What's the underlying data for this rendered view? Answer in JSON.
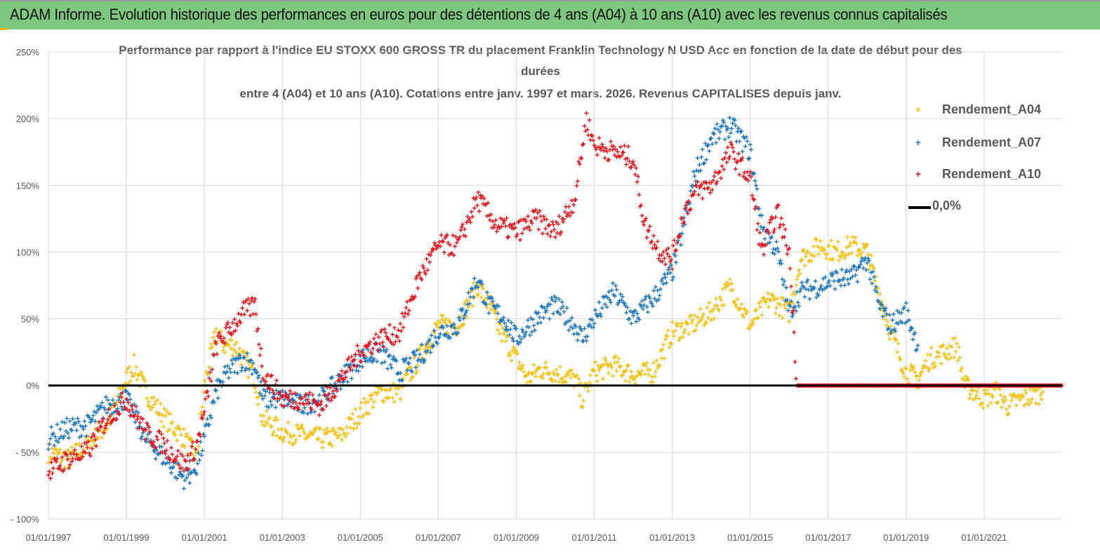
{
  "header": {
    "title": "ADAM Informe. Evolution historique des performances en euros pour des détentions de 4 ans (A04) à 10 ans (A10) avec les revenus connus capitalisés"
  },
  "chart_data": {
    "type": "scatter",
    "title_lines": [
      "Performance par rapport à l'indice EU STOXX 600 GROSS TR  du placement Franklin Technology N USD Acc en fonction de la date de début pour des",
      "durées",
      "entre 4 (A04) et 10 ans (A10). Cotations entre janv. 1997 et mars. 2026. Revenus CAPITALISES depuis janv."
    ],
    "xlabel": "",
    "ylabel": "",
    "xlim": [
      1997,
      2023
    ],
    "ylim": [
      -100,
      250
    ],
    "y_ticks": [
      250,
      200,
      150,
      100,
      50,
      0,
      -50,
      -100
    ],
    "y_tick_labels": [
      "250%",
      "200%",
      "150%",
      "100%",
      "50%",
      "0%",
      "- 50%",
      "- 100%"
    ],
    "x_ticks": [
      1997,
      1999,
      2001,
      2003,
      2005,
      2007,
      2009,
      2011,
      2013,
      2015,
      2017,
      2019,
      2021
    ],
    "x_tick_labels": [
      "01/01/1997",
      "01/01/1999",
      "01/01/2001",
      "01/01/2003",
      "01/01/2005",
      "01/01/2007",
      "01/01/2009",
      "01/01/2011",
      "01/01/2013",
      "01/01/2015",
      "01/01/2017",
      "01/01/2019",
      "01/01/2021"
    ],
    "grid": true,
    "legend_position": "right",
    "series": [
      {
        "name": "Rendement_A04",
        "color": "#f5c010",
        "marker": "+",
        "points": [
          [
            1997.0,
            -50
          ],
          [
            1997.5,
            -55
          ],
          [
            1998.0,
            -45
          ],
          [
            1998.5,
            -30
          ],
          [
            1999.0,
            5
          ],
          [
            1999.2,
            15
          ],
          [
            1999.5,
            -5
          ],
          [
            2000.0,
            -25
          ],
          [
            2000.5,
            -40
          ],
          [
            2000.8,
            -55
          ],
          [
            2001.0,
            0
          ],
          [
            2001.3,
            40
          ],
          [
            2001.5,
            30
          ],
          [
            2001.8,
            30
          ],
          [
            2002.0,
            20
          ],
          [
            2002.3,
            5
          ],
          [
            2002.5,
            -25
          ],
          [
            2003.0,
            -35
          ],
          [
            2003.5,
            -37
          ],
          [
            2004.0,
            -40
          ],
          [
            2004.5,
            -38
          ],
          [
            2005.0,
            -20
          ],
          [
            2005.5,
            -5
          ],
          [
            2006.0,
            -5
          ],
          [
            2006.5,
            20
          ],
          [
            2007.0,
            45
          ],
          [
            2007.5,
            45
          ],
          [
            2008.0,
            75
          ],
          [
            2008.3,
            60
          ],
          [
            2008.6,
            40
          ],
          [
            2009.0,
            20
          ],
          [
            2009.3,
            5
          ],
          [
            2009.6,
            12
          ],
          [
            2010.0,
            10
          ],
          [
            2010.5,
            5
          ],
          [
            2010.7,
            -10
          ],
          [
            2011.0,
            10
          ],
          [
            2011.5,
            15
          ],
          [
            2012.0,
            8
          ],
          [
            2012.5,
            10
          ],
          [
            2013.0,
            40
          ],
          [
            2013.5,
            45
          ],
          [
            2014.0,
            55
          ],
          [
            2014.5,
            75
          ],
          [
            2015.0,
            45
          ],
          [
            2015.5,
            65
          ],
          [
            2016.0,
            55
          ],
          [
            2016.3,
            95
          ],
          [
            2016.8,
            105
          ],
          [
            2017.2,
            100
          ],
          [
            2017.6,
            105
          ],
          [
            2018.0,
            100
          ],
          [
            2018.3,
            70
          ],
          [
            2018.6,
            40
          ],
          [
            2019.0,
            10
          ],
          [
            2019.3,
            5
          ],
          [
            2019.6,
            20
          ],
          [
            2020.0,
            25
          ],
          [
            2020.3,
            30
          ],
          [
            2020.5,
            0
          ],
          [
            2021.0,
            -10
          ],
          [
            2021.3,
            -5
          ],
          [
            2021.6,
            -15
          ],
          [
            2022.0,
            -10
          ],
          [
            2022.5,
            -5
          ]
        ]
      },
      {
        "name": "Rendement_A07",
        "color": "#1f77c0",
        "marker": "+",
        "points": [
          [
            1997.0,
            -40
          ],
          [
            1997.5,
            -32
          ],
          [
            1998.0,
            -30
          ],
          [
            1998.5,
            -15
          ],
          [
            1999.0,
            -10
          ],
          [
            1999.5,
            -40
          ],
          [
            2000.0,
            -55
          ],
          [
            2000.5,
            -70
          ],
          [
            2000.8,
            -60
          ],
          [
            2001.0,
            -40
          ],
          [
            2001.3,
            -5
          ],
          [
            2001.6,
            10
          ],
          [
            2002.0,
            20
          ],
          [
            2002.3,
            15
          ],
          [
            2002.5,
            -10
          ],
          [
            2003.0,
            -10
          ],
          [
            2003.5,
            -15
          ],
          [
            2004.0,
            -10
          ],
          [
            2004.5,
            5
          ],
          [
            2005.0,
            20
          ],
          [
            2005.5,
            25
          ],
          [
            2006.0,
            10
          ],
          [
            2006.5,
            20
          ],
          [
            2007.0,
            40
          ],
          [
            2007.5,
            45
          ],
          [
            2008.0,
            80
          ],
          [
            2008.3,
            60
          ],
          [
            2008.7,
            50
          ],
          [
            2009.0,
            35
          ],
          [
            2009.5,
            50
          ],
          [
            2010.0,
            60
          ],
          [
            2010.5,
            45
          ],
          [
            2010.7,
            35
          ],
          [
            2011.0,
            50
          ],
          [
            2011.5,
            70
          ],
          [
            2012.0,
            50
          ],
          [
            2012.5,
            65
          ],
          [
            2013.0,
            85
          ],
          [
            2013.3,
            120
          ],
          [
            2013.6,
            160
          ],
          [
            2014.0,
            185
          ],
          [
            2014.5,
            195
          ],
          [
            2015.0,
            175
          ],
          [
            2015.3,
            120
          ],
          [
            2015.7,
            100
          ],
          [
            2016.0,
            55
          ],
          [
            2016.3,
            70
          ],
          [
            2016.8,
            75
          ],
          [
            2017.2,
            80
          ],
          [
            2017.6,
            80
          ],
          [
            2018.0,
            95
          ],
          [
            2018.3,
            60
          ],
          [
            2018.6,
            45
          ],
          [
            2019.0,
            55
          ],
          [
            2019.3,
            30
          ]
        ]
      },
      {
        "name": "Rendement_A10",
        "color": "#e8141c",
        "marker": "+",
        "points": [
          [
            1997.0,
            -65
          ],
          [
            1997.5,
            -55
          ],
          [
            1998.0,
            -50
          ],
          [
            1998.5,
            -25
          ],
          [
            1999.0,
            -10
          ],
          [
            1999.5,
            -35
          ],
          [
            2000.0,
            -45
          ],
          [
            2000.5,
            -60
          ],
          [
            2000.8,
            -45
          ],
          [
            2001.0,
            -20
          ],
          [
            2001.3,
            30
          ],
          [
            2001.6,
            40
          ],
          [
            2002.0,
            55
          ],
          [
            2002.3,
            60
          ],
          [
            2002.5,
            10
          ],
          [
            2003.0,
            -10
          ],
          [
            2003.5,
            -10
          ],
          [
            2004.0,
            -15
          ],
          [
            2004.5,
            5
          ],
          [
            2005.0,
            25
          ],
          [
            2005.5,
            35
          ],
          [
            2006.0,
            40
          ],
          [
            2006.5,
            80
          ],
          [
            2007.0,
            105
          ],
          [
            2007.5,
            105
          ],
          [
            2008.0,
            140
          ],
          [
            2008.5,
            120
          ],
          [
            2009.0,
            115
          ],
          [
            2009.5,
            125
          ],
          [
            2010.0,
            115
          ],
          [
            2010.5,
            140
          ],
          [
            2010.8,
            200
          ],
          [
            2011.0,
            180
          ],
          [
            2011.5,
            175
          ],
          [
            2012.0,
            170
          ],
          [
            2012.3,
            120
          ],
          [
            2012.7,
            100
          ],
          [
            2013.0,
            95
          ],
          [
            2013.3,
            130
          ],
          [
            2013.6,
            145
          ],
          [
            2014.0,
            150
          ],
          [
            2014.5,
            175
          ],
          [
            2015.0,
            155
          ],
          [
            2015.3,
            100
          ],
          [
            2015.7,
            130
          ],
          [
            2016.0,
            100
          ],
          [
            2016.2,
            0
          ],
          [
            2023.0,
            0
          ]
        ]
      },
      {
        "name": "0,0%",
        "color": "#000000",
        "type": "line",
        "points": [
          [
            1997.0,
            0
          ],
          [
            2023.0,
            0
          ]
        ]
      }
    ]
  }
}
